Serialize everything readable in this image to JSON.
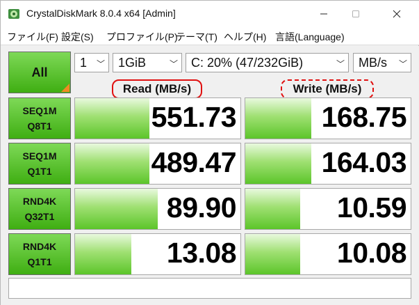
{
  "window": {
    "title": "CrystalDiskMark 8.0.4 x64 [Admin]"
  },
  "menu": [
    "ファイル(F)",
    "設定(S)",
    "プロファイル(P)",
    "テーマ(T)",
    "ヘルプ(H)",
    "言語(Language)"
  ],
  "controls": {
    "all_label": "All",
    "count": "1",
    "size": "1GiB",
    "drive": "C: 20% (47/232GiB)",
    "unit": "MB/s"
  },
  "headers": {
    "read": "Read (MB/s)",
    "write": "Write (MB/s)"
  },
  "tests": [
    {
      "line1": "SEQ1M",
      "line2": "Q8T1",
      "read": "551.73",
      "write": "168.75",
      "read_fill": 0.45,
      "write_fill": 0.4
    },
    {
      "line1": "SEQ1M",
      "line2": "Q1T1",
      "read": "489.47",
      "write": "164.03",
      "read_fill": 0.45,
      "write_fill": 0.4
    },
    {
      "line1": "RND4K",
      "line2": "Q32T1",
      "read": "89.90",
      "write": "10.59",
      "read_fill": 0.5,
      "write_fill": 0.33
    },
    {
      "line1": "RND4K",
      "line2": "Q1T1",
      "read": "13.08",
      "write": "10.08",
      "read_fill": 0.34,
      "write_fill": 0.33
    }
  ],
  "comment": ""
}
